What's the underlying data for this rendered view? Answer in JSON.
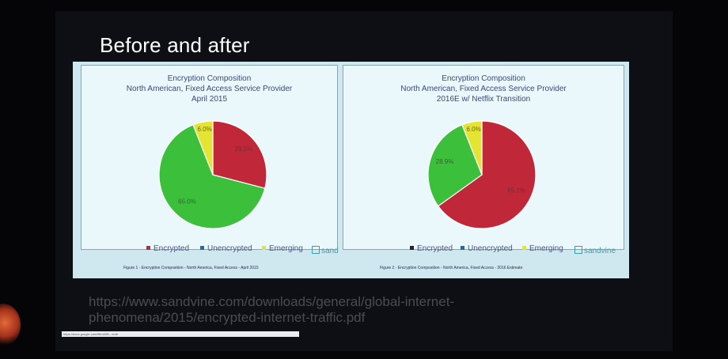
{
  "slide": {
    "title": "Before and after",
    "source_url_line1": "https://www.sandvine.com/downloads/general/global-internet-",
    "source_url_line2": "phenomena/2015/encrypted-internet-traffic.pdf",
    "status_url": "https://docs.google.com/file/d/0B.../edit"
  },
  "colors": {
    "encrypted": "#c0283a",
    "unencrypted": "#3cc03c",
    "emerging": "#e4e432"
  },
  "chart_data": [
    {
      "type": "pie",
      "title_lines": [
        "Encryption Composition",
        "North American, Fixed Access Service Provider",
        "April 2015"
      ],
      "labels": [
        "Encrypted",
        "Unencrypted",
        "Emerging"
      ],
      "values": [
        29.1,
        65.0,
        6.0
      ],
      "slice_labels": [
        "29.1%",
        "65.0%",
        "6.0%"
      ],
      "legend": [
        "Encrypted",
        "Unencrypted",
        "Emerging"
      ],
      "logo_text": "sand",
      "caption": "Figure 1 - Encryption Composition - North America, Fixed Access - April 2015"
    },
    {
      "type": "pie",
      "title_lines": [
        "Encryption Composition",
        "North American, Fixed Access Service Provider",
        "2016E w/ Netflix Transition"
      ],
      "labels": [
        "Encrypted",
        "Unencrypted",
        "Emerging"
      ],
      "values": [
        65.1,
        28.9,
        6.0
      ],
      "slice_labels": [
        "65.1%",
        "28.9%",
        "6.0%"
      ],
      "legend": [
        "Encrypted",
        "Unencrypted",
        "Emerging"
      ],
      "logo_text": "sandvine",
      "caption": "Figure 2 - Encryption Composition - North America, Fixed Access - 2016 Estimate"
    }
  ]
}
